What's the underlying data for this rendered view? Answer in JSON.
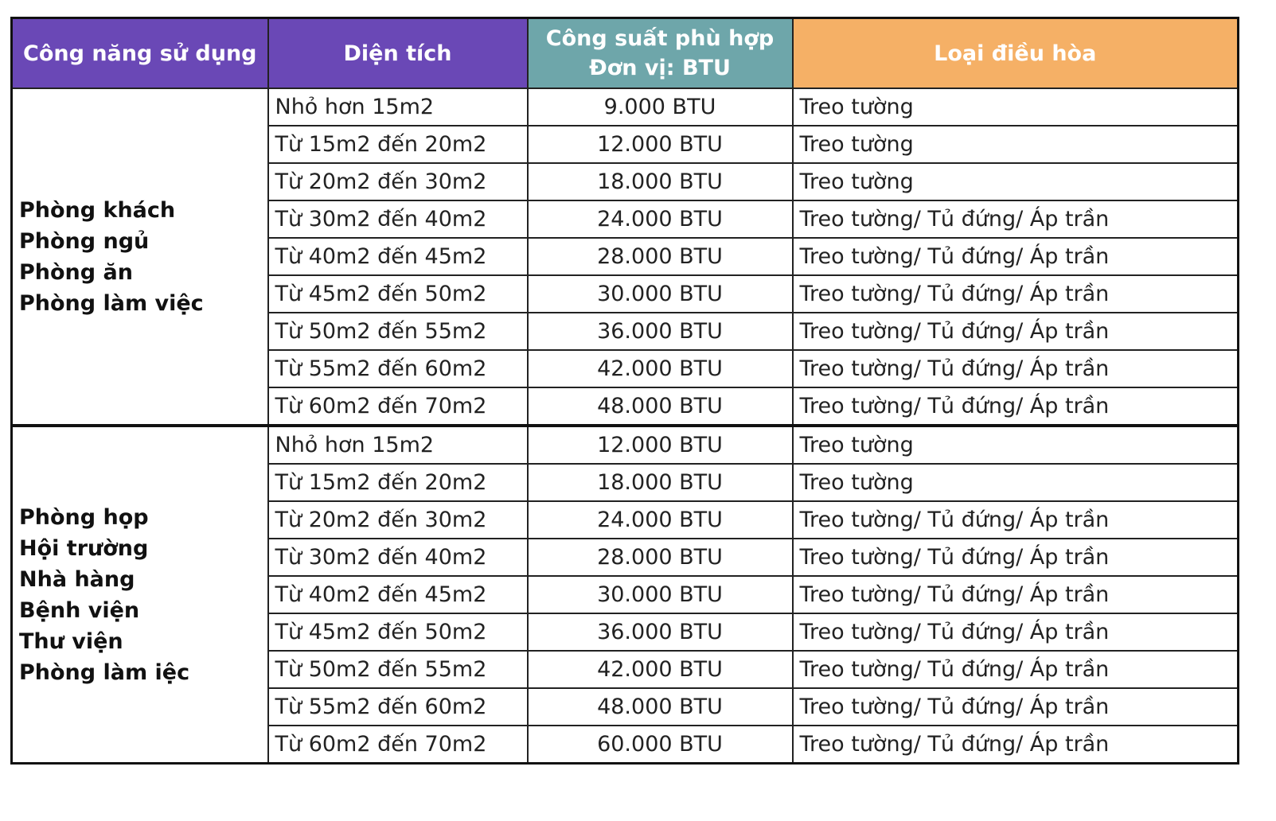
{
  "table": {
    "header": [
      "Công năng sử dụng",
      "Diện tích",
      [
        "Công suất phù hợp",
        "Đơn vị: BTU"
      ],
      "Loại điều hòa"
    ],
    "groups": [
      {
        "label": [
          "Phòng khách",
          "Phòng ngủ",
          "Phòng ăn",
          "Phòng làm việc"
        ],
        "rows": [
          [
            "Nhỏ hơn 15m2",
            "9.000 BTU",
            "Treo tường"
          ],
          [
            "Từ 15m2 đến 20m2",
            "12.000 BTU",
            "Treo tường"
          ],
          [
            "Từ 20m2 đến 30m2",
            "18.000 BTU",
            "Treo tường"
          ],
          [
            "Từ 30m2 đến 40m2",
            "24.000 BTU",
            "Treo tường/ Tủ đứng/ Áp trần"
          ],
          [
            "Từ 40m2 đến 45m2",
            "28.000 BTU",
            "Treo tường/ Tủ đứng/ Áp trần"
          ],
          [
            "Từ 45m2 đến 50m2",
            "30.000 BTU",
            "Treo tường/ Tủ đứng/ Áp trần"
          ],
          [
            "Từ 50m2 đến 55m2",
            "36.000 BTU",
            "Treo tường/ Tủ đứng/ Áp trần"
          ],
          [
            "Từ 55m2 đến 60m2",
            "42.000 BTU",
            "Treo tường/ Tủ đứng/ Áp trần"
          ],
          [
            "Từ 60m2 đến 70m2",
            "48.000 BTU",
            "Treo tường/ Tủ đứng/ Áp trần"
          ]
        ]
      },
      {
        "label": [
          "Phòng họp",
          "Hội trường",
          "Nhà hàng",
          "Bệnh viện",
          "Thư viện",
          "Phòng làm iệc"
        ],
        "rows": [
          [
            "Nhỏ hơn 15m2",
            "12.000 BTU",
            "Treo tường"
          ],
          [
            "Từ 15m2 đến 20m2",
            "18.000 BTU",
            "Treo tường"
          ],
          [
            "Từ 20m2 đến 30m2",
            "24.000 BTU",
            "Treo tường/ Tủ đứng/ Áp trần"
          ],
          [
            "Từ 30m2 đến 40m2",
            "28.000 BTU",
            "Treo tường/ Tủ đứng/ Áp trần"
          ],
          [
            "Từ 40m2 đến 45m2",
            "30.000 BTU",
            "Treo tường/ Tủ đứng/ Áp trần"
          ],
          [
            "Từ 45m2 đến 50m2",
            "36.000 BTU",
            "Treo tường/ Tủ đứng/ Áp trần"
          ],
          [
            "Từ 50m2 đến 55m2",
            "42.000 BTU",
            "Treo tường/ Tủ đứng/ Áp trần"
          ],
          [
            "Từ 55m2 đến 60m2",
            "48.000 BTU",
            "Treo tường/ Tủ đứng/ Áp trần"
          ],
          [
            "Từ 60m2 đến 70m2",
            "60.000 BTU",
            "Treo tường/ Tủ đứng/ Áp trần"
          ]
        ]
      }
    ]
  }
}
